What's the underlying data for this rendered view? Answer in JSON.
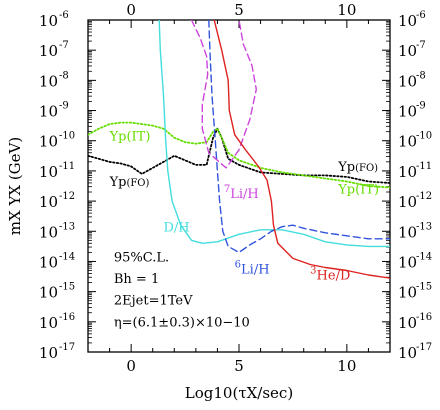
{
  "chart_data": {
    "type": "line",
    "title": "",
    "xlabel": "Log10(τX/sec)",
    "ylabel": "mX YX (GeV)",
    "xlim": [
      -2,
      12
    ],
    "ylim_log10": [
      -17,
      -6
    ],
    "x_tick_labels": [
      "0",
      "5",
      "10"
    ],
    "x_top_tick_labels": [
      "0",
      "5",
      "10"
    ],
    "y_tick_labels": [
      "10",
      "10",
      "10",
      "10",
      "10",
      "10",
      "10",
      "10",
      "10",
      "10",
      "10",
      "10"
    ],
    "y_tick_exponents": [
      "-6",
      "-7",
      "-8",
      "-9",
      "-10",
      "-11",
      "-12",
      "-13",
      "-14",
      "-15",
      "-16",
      "-17"
    ],
    "grid": false,
    "annotations": [
      "95%C.L.",
      "Bh = 1",
      "2Ejet=1TeV",
      "η=(6.1±0.3)×10−10"
    ],
    "series": [
      {
        "name": "Yp(FO)",
        "color": "#000000",
        "dash": "dotted",
        "points": [
          [
            -2,
            -10.5
          ],
          [
            -1.5,
            -10.6
          ],
          [
            -1,
            -10.7
          ],
          [
            -0.5,
            -10.75
          ],
          [
            0,
            -10.85
          ],
          [
            0.5,
            -11.1
          ],
          [
            1,
            -10.9
          ],
          [
            1.5,
            -10.7
          ],
          [
            2,
            -10.5
          ],
          [
            2.5,
            -10.65
          ],
          [
            3,
            -10.8
          ],
          [
            3.5,
            -10.8
          ],
          [
            3.8,
            -9.9
          ],
          [
            4,
            -9.6
          ],
          [
            4.2,
            -9.9
          ],
          [
            4.5,
            -10.6
          ],
          [
            5,
            -10.8
          ],
          [
            6,
            -11.05
          ],
          [
            7,
            -11.1
          ],
          [
            8,
            -11.15
          ],
          [
            9,
            -11.15
          ],
          [
            10,
            -11.2
          ],
          [
            11,
            -11.35
          ],
          [
            12,
            -11.4
          ]
        ]
      },
      {
        "name": "Yp(IT)",
        "color": "#66dd00",
        "dash": "dotted",
        "points": [
          [
            -2,
            -9.8
          ],
          [
            -1.5,
            -9.6
          ],
          [
            -1,
            -9.45
          ],
          [
            -0.5,
            -9.4
          ],
          [
            0,
            -9.4
          ],
          [
            0.5,
            -9.45
          ],
          [
            1,
            -9.5
          ],
          [
            1.5,
            -9.6
          ],
          [
            2,
            -9.9
          ],
          [
            2.5,
            -10.05
          ],
          [
            3,
            -10.1
          ],
          [
            3.5,
            -10.05
          ],
          [
            3.8,
            -9.7
          ],
          [
            4,
            -9.6
          ],
          [
            4.2,
            -9.9
          ],
          [
            4.5,
            -10.4
          ],
          [
            5,
            -10.65
          ],
          [
            6,
            -10.9
          ],
          [
            7,
            -11.05
          ],
          [
            8,
            -11.15
          ],
          [
            9,
            -11.25
          ],
          [
            10,
            -11.35
          ],
          [
            11,
            -11.5
          ],
          [
            12,
            -11.55
          ]
        ]
      },
      {
        "name": "D/H",
        "color": "#44dddd",
        "dash": "solid",
        "points": [
          [
            1.3,
            -6
          ],
          [
            1.35,
            -7
          ],
          [
            1.5,
            -8.5
          ],
          [
            1.6,
            -10
          ],
          [
            1.7,
            -11
          ],
          [
            1.9,
            -12
          ],
          [
            2.3,
            -12.8
          ],
          [
            2.8,
            -13.3
          ],
          [
            3.3,
            -13.4
          ],
          [
            4,
            -13.35
          ],
          [
            5,
            -13.1
          ],
          [
            6,
            -12.95
          ],
          [
            7,
            -12.95
          ],
          [
            8,
            -13.1
          ],
          [
            9,
            -13.35
          ],
          [
            10,
            -13.45
          ],
          [
            11,
            -13.5
          ],
          [
            12,
            -13.5
          ]
        ]
      },
      {
        "name": "6Li/H",
        "color": "#3355dd",
        "dash": "dashed",
        "points": [
          [
            3.6,
            -6
          ],
          [
            3.65,
            -7
          ],
          [
            3.75,
            -8.5
          ],
          [
            3.9,
            -10
          ],
          [
            4,
            -11
          ],
          [
            4.1,
            -12
          ],
          [
            4.25,
            -13
          ],
          [
            4.5,
            -13.5
          ],
          [
            5,
            -13.7
          ],
          [
            5.5,
            -13.45
          ],
          [
            6,
            -13.25
          ],
          [
            6.5,
            -13
          ],
          [
            7,
            -12.85
          ],
          [
            7.5,
            -12.8
          ],
          [
            8,
            -12.9
          ],
          [
            9,
            -13.05
          ],
          [
            10,
            -13.15
          ],
          [
            11,
            -13.25
          ],
          [
            12,
            -13.25
          ]
        ]
      },
      {
        "name": "7Li/H",
        "color": "#cc44dd",
        "dash": "dashed",
        "points": [
          [
            2.8,
            -6
          ],
          [
            3.2,
            -6.6
          ],
          [
            3.5,
            -7.2
          ],
          [
            3.55,
            -7.8
          ],
          [
            3.3,
            -8.8
          ],
          [
            3.3,
            -9.6
          ],
          [
            3.6,
            -10.4
          ],
          [
            4.4,
            -10.9
          ],
          [
            5,
            -10.3
          ],
          [
            5.5,
            -9.3
          ],
          [
            5.8,
            -8.3
          ],
          [
            5.6,
            -7.5
          ],
          [
            5.2,
            -6.8
          ],
          [
            5,
            -6
          ]
        ]
      },
      {
        "name": "3He/D",
        "color": "#dd2222",
        "dash": "solid",
        "points": [
          [
            3.85,
            -6
          ],
          [
            4.2,
            -7
          ],
          [
            4.5,
            -8
          ],
          [
            4.55,
            -9
          ],
          [
            4.8,
            -9.8
          ],
          [
            5.3,
            -10.3
          ],
          [
            5.9,
            -10.85
          ],
          [
            6.3,
            -11.3
          ],
          [
            6.5,
            -12
          ],
          [
            6.6,
            -12.8
          ],
          [
            6.8,
            -13.4
          ],
          [
            7.5,
            -13.9
          ],
          [
            8.3,
            -14.1
          ],
          [
            9,
            -14.2
          ],
          [
            10,
            -14.3
          ],
          [
            11,
            -14.45
          ],
          [
            12,
            -14.55
          ]
        ]
      }
    ],
    "curve_labels": [
      {
        "text": "Yp(IT)",
        "color": "#66dd00",
        "x": -1.0,
        "y": -10.0
      },
      {
        "text": "Yp",
        "sub": "(FO)",
        "color": "#000000",
        "x": -1.0,
        "y": -11.5
      },
      {
        "text": "Yp",
        "sub": "(FO)",
        "color": "#000000",
        "x": 9.6,
        "y": -11.0
      },
      {
        "text": "Yp(IT)",
        "color": "#66dd00",
        "x": 9.6,
        "y": -11.75
      },
      {
        "sup": "7",
        "text": "Li/H",
        "color": "#cc44dd",
        "x": 4.3,
        "y": -11.9
      },
      {
        "text": "D/H",
        "color": "#44dddd",
        "x": 1.5,
        "y": -13.0
      },
      {
        "sup": "6",
        "text": "Li/H",
        "color": "#3355dd",
        "x": 4.8,
        "y": -14.4
      },
      {
        "sup": "3",
        "text": "He/D",
        "color": "#dd2222",
        "x": 8.3,
        "y": -14.6
      }
    ]
  }
}
